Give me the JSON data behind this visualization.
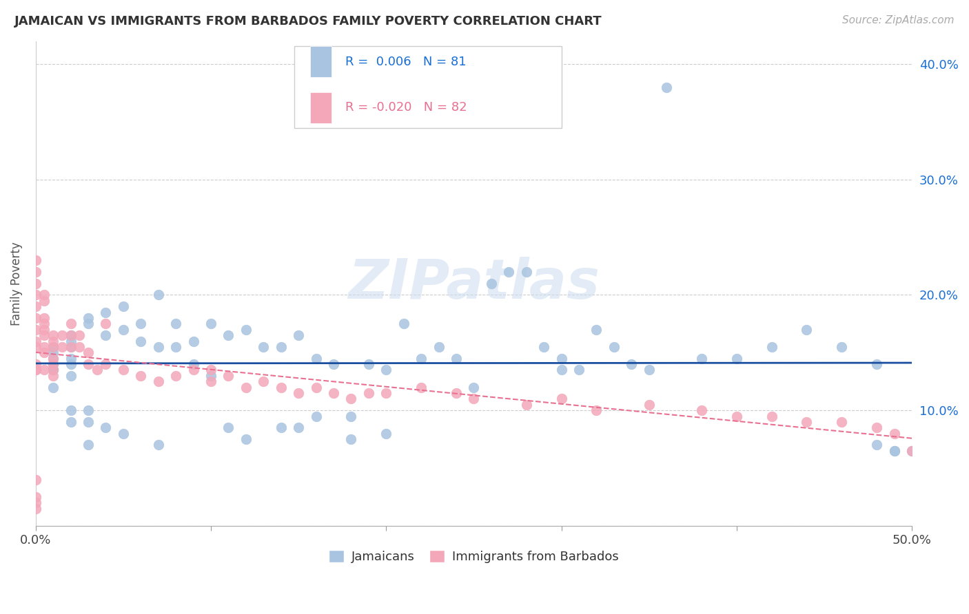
{
  "title": "JAMAICAN VS IMMIGRANTS FROM BARBADOS FAMILY POVERTY CORRELATION CHART",
  "source": "Source: ZipAtlas.com",
  "ylabel": "Family Poverty",
  "xlim": [
    0.0,
    0.5
  ],
  "ylim": [
    0.0,
    0.42
  ],
  "jamaicans_color": "#a8c4e0",
  "barbados_color": "#f4a7b9",
  "trend_jamaicans_color": "#1a4fa0",
  "trend_barbados_color": "#e87090",
  "watermark": "ZIPatlas",
  "jamaicans_x": [
    0.01,
    0.01,
    0.01,
    0.01,
    0.01,
    0.01,
    0.01,
    0.02,
    0.02,
    0.02,
    0.02,
    0.02,
    0.02,
    0.02,
    0.02,
    0.03,
    0.03,
    0.03,
    0.03,
    0.03,
    0.04,
    0.04,
    0.04,
    0.05,
    0.05,
    0.05,
    0.06,
    0.06,
    0.07,
    0.07,
    0.07,
    0.08,
    0.08,
    0.09,
    0.09,
    0.1,
    0.1,
    0.11,
    0.11,
    0.12,
    0.12,
    0.13,
    0.14,
    0.14,
    0.15,
    0.15,
    0.16,
    0.16,
    0.17,
    0.18,
    0.18,
    0.19,
    0.2,
    0.2,
    0.21,
    0.22,
    0.23,
    0.24,
    0.25,
    0.26,
    0.27,
    0.28,
    0.29,
    0.3,
    0.3,
    0.31,
    0.32,
    0.33,
    0.34,
    0.35,
    0.36,
    0.38,
    0.4,
    0.42,
    0.44,
    0.46,
    0.48,
    0.48,
    0.49,
    0.49,
    0.5
  ],
  "jamaicans_y": [
    0.135,
    0.135,
    0.14,
    0.145,
    0.15,
    0.155,
    0.12,
    0.14,
    0.145,
    0.13,
    0.155,
    0.16,
    0.165,
    0.1,
    0.09,
    0.175,
    0.18,
    0.09,
    0.1,
    0.07,
    0.185,
    0.165,
    0.085,
    0.19,
    0.17,
    0.08,
    0.175,
    0.16,
    0.2,
    0.155,
    0.07,
    0.175,
    0.155,
    0.16,
    0.14,
    0.175,
    0.13,
    0.165,
    0.085,
    0.17,
    0.075,
    0.155,
    0.155,
    0.085,
    0.165,
    0.085,
    0.145,
    0.095,
    0.14,
    0.095,
    0.075,
    0.14,
    0.135,
    0.08,
    0.175,
    0.145,
    0.155,
    0.145,
    0.12,
    0.21,
    0.22,
    0.22,
    0.155,
    0.135,
    0.145,
    0.135,
    0.17,
    0.155,
    0.14,
    0.135,
    0.38,
    0.145,
    0.145,
    0.155,
    0.17,
    0.155,
    0.14,
    0.07,
    0.065,
    0.065,
    0.065
  ],
  "barbados_x": [
    0.0,
    0.0,
    0.0,
    0.0,
    0.0,
    0.0,
    0.0,
    0.0,
    0.0,
    0.0,
    0.0,
    0.0,
    0.0,
    0.0,
    0.0,
    0.0,
    0.005,
    0.005,
    0.005,
    0.005,
    0.005,
    0.005,
    0.005,
    0.005,
    0.005,
    0.01,
    0.01,
    0.01,
    0.01,
    0.01,
    0.01,
    0.01,
    0.015,
    0.015,
    0.02,
    0.02,
    0.02,
    0.025,
    0.025,
    0.03,
    0.03,
    0.035,
    0.04,
    0.04,
    0.05,
    0.06,
    0.07,
    0.08,
    0.09,
    0.1,
    0.1,
    0.11,
    0.12,
    0.13,
    0.14,
    0.15,
    0.16,
    0.17,
    0.18,
    0.19,
    0.2,
    0.22,
    0.24,
    0.25,
    0.28,
    0.3,
    0.32,
    0.35,
    0.38,
    0.4,
    0.42,
    0.44,
    0.46,
    0.48,
    0.49,
    0.5
  ],
  "barbados_y": [
    0.135,
    0.14,
    0.155,
    0.16,
    0.17,
    0.18,
    0.19,
    0.2,
    0.21,
    0.22,
    0.23,
    0.135,
    0.04,
    0.025,
    0.02,
    0.015,
    0.2,
    0.195,
    0.18,
    0.175,
    0.17,
    0.165,
    0.155,
    0.135,
    0.15,
    0.165,
    0.16,
    0.155,
    0.145,
    0.14,
    0.135,
    0.13,
    0.165,
    0.155,
    0.175,
    0.165,
    0.155,
    0.165,
    0.155,
    0.15,
    0.14,
    0.135,
    0.175,
    0.14,
    0.135,
    0.13,
    0.125,
    0.13,
    0.135,
    0.135,
    0.125,
    0.13,
    0.12,
    0.125,
    0.12,
    0.115,
    0.12,
    0.115,
    0.11,
    0.115,
    0.115,
    0.12,
    0.115,
    0.11,
    0.105,
    0.11,
    0.1,
    0.105,
    0.1,
    0.095,
    0.095,
    0.09,
    0.09,
    0.085,
    0.08,
    0.065
  ]
}
